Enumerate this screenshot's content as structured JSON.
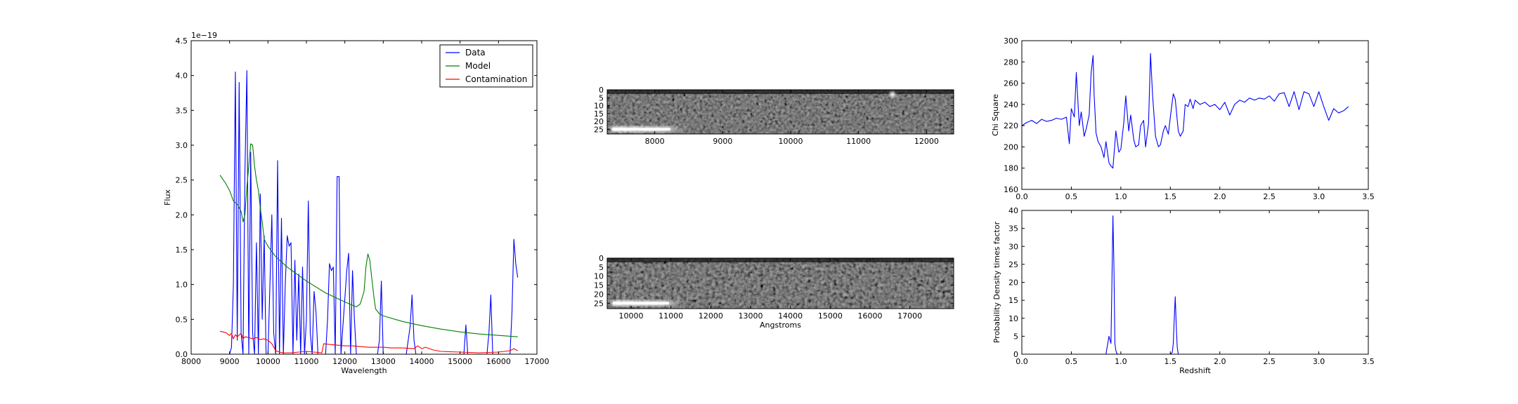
{
  "chart_data": [
    {
      "type": "line",
      "xlabel": "Wavelength",
      "ylabel": "Flux",
      "offset_label": "1e−19",
      "xlim": [
        8000,
        17000
      ],
      "ylim": [
        0,
        4.5
      ],
      "xticks": [
        8000,
        9000,
        10000,
        11000,
        12000,
        13000,
        14000,
        15000,
        16000,
        17000
      ],
      "yticks": [
        0.0,
        0.5,
        1.0,
        1.5,
        2.0,
        2.5,
        3.0,
        3.5,
        4.0,
        4.5
      ],
      "legend_position": "top-right",
      "series": [
        {
          "name": "Data",
          "color": "#0000ff",
          "x": [
            8800,
            9000,
            9050,
            9100,
            9150,
            9200,
            9250,
            9300,
            9350,
            9400,
            9450,
            9500,
            9550,
            9600,
            9650,
            9700,
            9750,
            9800,
            9850,
            9900,
            9950,
            10000,
            10050,
            10100,
            10150,
            10200,
            10250,
            10300,
            10350,
            10400,
            10450,
            10500,
            10550,
            10600,
            10650,
            10700,
            10750,
            10800,
            10850,
            10900,
            10950,
            11000,
            11050,
            11100,
            11150,
            11200,
            11250,
            11300,
            11350,
            11400,
            11450,
            11500,
            11550,
            11600,
            11650,
            11700,
            11750,
            11800,
            11850,
            11900,
            11950,
            12000,
            12050,
            12100,
            12150,
            12200,
            12250,
            12300,
            12350,
            12400,
            12450,
            12500,
            12550,
            12600,
            12650,
            12700,
            12750,
            12800,
            12850,
            12900,
            12950,
            13000,
            13100,
            13200,
            13300,
            13400,
            13500,
            13600,
            13700,
            13750,
            13800,
            13850,
            13900,
            14000,
            14200,
            14400,
            14600,
            14800,
            15000,
            15100,
            15150,
            15200,
            15250,
            15300,
            15500,
            15700,
            15750,
            15800,
            15850,
            15900,
            16000,
            16100,
            16200,
            16300,
            16350,
            16400,
            16450,
            16500
          ],
          "y": [
            0.0,
            0.0,
            0.1,
            1.0,
            4.05,
            0.2,
            3.9,
            0.3,
            0.0,
            2.6,
            4.07,
            0.0,
            2.9,
            0.3,
            0.0,
            1.6,
            0.0,
            2.3,
            0.5,
            1.7,
            0.0,
            0.0,
            1.0,
            2.0,
            0.3,
            0.0,
            2.78,
            0.0,
            1.95,
            0.0,
            1.0,
            1.7,
            1.55,
            1.6,
            0.0,
            1.35,
            0.2,
            1.15,
            0.0,
            1.25,
            0.0,
            0.5,
            2.2,
            0.3,
            0.0,
            0.9,
            0.6,
            0.0,
            0.0,
            0.0,
            0.0,
            0.0,
            0.5,
            1.3,
            1.2,
            1.25,
            0.0,
            2.55,
            2.55,
            0.0,
            0.4,
            0.8,
            1.2,
            1.45,
            0.0,
            1.2,
            0.5,
            0.0,
            0.0,
            0.0,
            0.0,
            0.0,
            0.0,
            0.0,
            0.0,
            0.0,
            0.0,
            0.0,
            0.0,
            0.2,
            1.05,
            0.0,
            0.0,
            0.0,
            0.0,
            0.0,
            0.0,
            0.0,
            0.4,
            0.85,
            0.2,
            0.0,
            0.0,
            0.0,
            0.0,
            0.0,
            0.0,
            0.0,
            0.0,
            0.0,
            0.42,
            0.0,
            0.0,
            0.0,
            0.0,
            0.0,
            0.3,
            0.85,
            0.0,
            0.0,
            0.0,
            0.0,
            0.0,
            0.0,
            0.6,
            1.65,
            1.3,
            1.1
          ]
        },
        {
          "name": "Model",
          "color": "#008000",
          "x": [
            8750,
            8900,
            9000,
            9100,
            9200,
            9300,
            9350,
            9400,
            9450,
            9500,
            9550,
            9600,
            9650,
            9700,
            9750,
            9800,
            9850,
            9900,
            10000,
            10200,
            10500,
            11000,
            11500,
            12000,
            12300,
            12400,
            12500,
            12550,
            12600,
            12650,
            12700,
            12750,
            12800,
            12900,
            13000,
            13500,
            14000,
            14500,
            15000,
            15500,
            16000,
            16500
          ],
          "y": [
            2.57,
            2.45,
            2.35,
            2.2,
            2.15,
            2.05,
            1.9,
            2.0,
            2.4,
            2.7,
            3.02,
            3.0,
            2.7,
            2.5,
            2.35,
            2.1,
            1.9,
            1.65,
            1.55,
            1.4,
            1.25,
            1.05,
            0.88,
            0.75,
            0.68,
            0.72,
            0.9,
            1.25,
            1.44,
            1.35,
            1.1,
            0.85,
            0.65,
            0.58,
            0.55,
            0.47,
            0.41,
            0.36,
            0.32,
            0.29,
            0.27,
            0.25
          ]
        },
        {
          "name": "Contamination",
          "color": "#ff0000",
          "x": [
            8750,
            8900,
            9000,
            9050,
            9100,
            9150,
            9200,
            9300,
            9350,
            9400,
            9500,
            9600,
            9700,
            9800,
            9900,
            10000,
            10100,
            10200,
            10300,
            10400,
            10600,
            10800,
            11000,
            11200,
            11400,
            11450,
            11600,
            11800,
            12000,
            12200,
            12400,
            12600,
            12800,
            13000,
            13200,
            13500,
            13800,
            13900,
            14000,
            14100,
            14300,
            14500,
            15000,
            15500,
            16000,
            16300,
            16400,
            16500
          ],
          "y": [
            0.33,
            0.31,
            0.27,
            0.3,
            0.22,
            0.28,
            0.25,
            0.3,
            0.22,
            0.25,
            0.24,
            0.22,
            0.24,
            0.21,
            0.22,
            0.2,
            0.15,
            0.05,
            0.03,
            0.02,
            0.02,
            0.03,
            0.04,
            0.03,
            0.02,
            0.15,
            0.14,
            0.13,
            0.12,
            0.12,
            0.11,
            0.1,
            0.1,
            0.1,
            0.09,
            0.09,
            0.08,
            0.12,
            0.08,
            0.1,
            0.06,
            0.04,
            0.03,
            0.02,
            0.03,
            0.05,
            0.08,
            0.05
          ]
        }
      ]
    },
    {
      "type": "heatmap",
      "xlim": [
        7300,
        12400
      ],
      "ylim": [
        28,
        0
      ],
      "xticks": [
        8000,
        9000,
        10000,
        11000,
        12000
      ],
      "yticks": [
        0,
        5,
        10,
        15,
        20,
        25
      ],
      "colormap": "gray",
      "features": [
        {
          "kind": "streak",
          "x_range": [
            7350,
            8500
          ],
          "y": 25
        },
        {
          "kind": "spot",
          "x": 11500,
          "y": 3
        }
      ]
    },
    {
      "type": "heatmap",
      "xlabel": "Angstroms",
      "xlim": [
        9400,
        18100
      ],
      "ylim": [
        28,
        0
      ],
      "xticks": [
        10000,
        11000,
        12000,
        13000,
        14000,
        15000,
        16000,
        17000
      ],
      "yticks": [
        0,
        5,
        10,
        15,
        20,
        25
      ],
      "colormap": "gray",
      "features": [
        {
          "kind": "streak",
          "x_range": [
            9500,
            11400
          ],
          "y": 25
        }
      ]
    },
    {
      "type": "line",
      "ylabel": "Chi Square",
      "xlim": [
        0,
        3.5
      ],
      "ylim": [
        160,
        300
      ],
      "xticks": [
        0.0,
        0.5,
        1.0,
        1.5,
        2.0,
        2.5,
        3.0,
        3.5
      ],
      "yticks": [
        160,
        180,
        200,
        220,
        240,
        260,
        280,
        300
      ],
      "series": [
        {
          "color": "#0000ff",
          "x": [
            0.0,
            0.05,
            0.1,
            0.15,
            0.2,
            0.25,
            0.3,
            0.35,
            0.4,
            0.45,
            0.48,
            0.5,
            0.53,
            0.55,
            0.58,
            0.6,
            0.63,
            0.65,
            0.68,
            0.7,
            0.72,
            0.73,
            0.75,
            0.77,
            0.8,
            0.83,
            0.85,
            0.88,
            0.9,
            0.92,
            0.95,
            0.98,
            1.0,
            1.03,
            1.05,
            1.08,
            1.1,
            1.13,
            1.15,
            1.18,
            1.2,
            1.23,
            1.25,
            1.28,
            1.3,
            1.32,
            1.35,
            1.38,
            1.4,
            1.43,
            1.45,
            1.48,
            1.5,
            1.53,
            1.55,
            1.58,
            1.6,
            1.63,
            1.65,
            1.68,
            1.7,
            1.73,
            1.75,
            1.8,
            1.85,
            1.9,
            1.95,
            2.0,
            2.05,
            2.1,
            2.15,
            2.2,
            2.25,
            2.3,
            2.35,
            2.4,
            2.45,
            2.5,
            2.55,
            2.6,
            2.65,
            2.7,
            2.75,
            2.8,
            2.85,
            2.9,
            2.95,
            3.0,
            3.05,
            3.1,
            3.15,
            3.2,
            3.25,
            3.3
          ],
          "y": [
            220,
            223,
            225,
            222,
            226,
            224,
            225,
            227,
            226,
            228,
            203,
            236,
            228,
            270,
            220,
            233,
            210,
            217,
            230,
            270,
            286,
            250,
            213,
            205,
            200,
            190,
            205,
            185,
            182,
            180,
            215,
            195,
            198,
            223,
            248,
            215,
            230,
            207,
            200,
            202,
            220,
            225,
            200,
            222,
            288,
            250,
            210,
            200,
            202,
            215,
            220,
            212,
            228,
            250,
            245,
            215,
            210,
            215,
            240,
            238,
            245,
            236,
            244,
            240,
            242,
            238,
            240,
            235,
            242,
            230,
            240,
            244,
            242,
            246,
            244,
            246,
            245,
            248,
            243,
            250,
            251,
            238,
            252,
            235,
            252,
            250,
            238,
            252,
            238,
            225,
            236,
            232,
            234,
            238
          ]
        }
      ]
    },
    {
      "type": "line",
      "xlabel": "Redshift",
      "ylabel": "Probability Density times factor",
      "xlim": [
        0,
        3.5
      ],
      "ylim": [
        0,
        40
      ],
      "xticks": [
        0.0,
        0.5,
        1.0,
        1.5,
        2.0,
        2.5,
        3.0,
        3.5
      ],
      "yticks": [
        0,
        5,
        10,
        15,
        20,
        25,
        30,
        35,
        40
      ],
      "series": [
        {
          "color": "#0000ff",
          "x": [
            0.0,
            0.85,
            0.88,
            0.89,
            0.9,
            0.91,
            0.92,
            0.93,
            0.94,
            0.95,
            0.96,
            0.97,
            1.5,
            1.52,
            1.53,
            1.54,
            1.55,
            1.56,
            1.57,
            1.58,
            3.3
          ],
          "y": [
            0.0,
            0.0,
            5.0,
            4.0,
            3.0,
            20.0,
            38.5,
            25.0,
            3.0,
            1.0,
            0.2,
            0.0,
            0.0,
            0.5,
            3.0,
            10.0,
            16.0,
            8.0,
            2.0,
            0.0,
            0.0
          ]
        }
      ]
    }
  ]
}
